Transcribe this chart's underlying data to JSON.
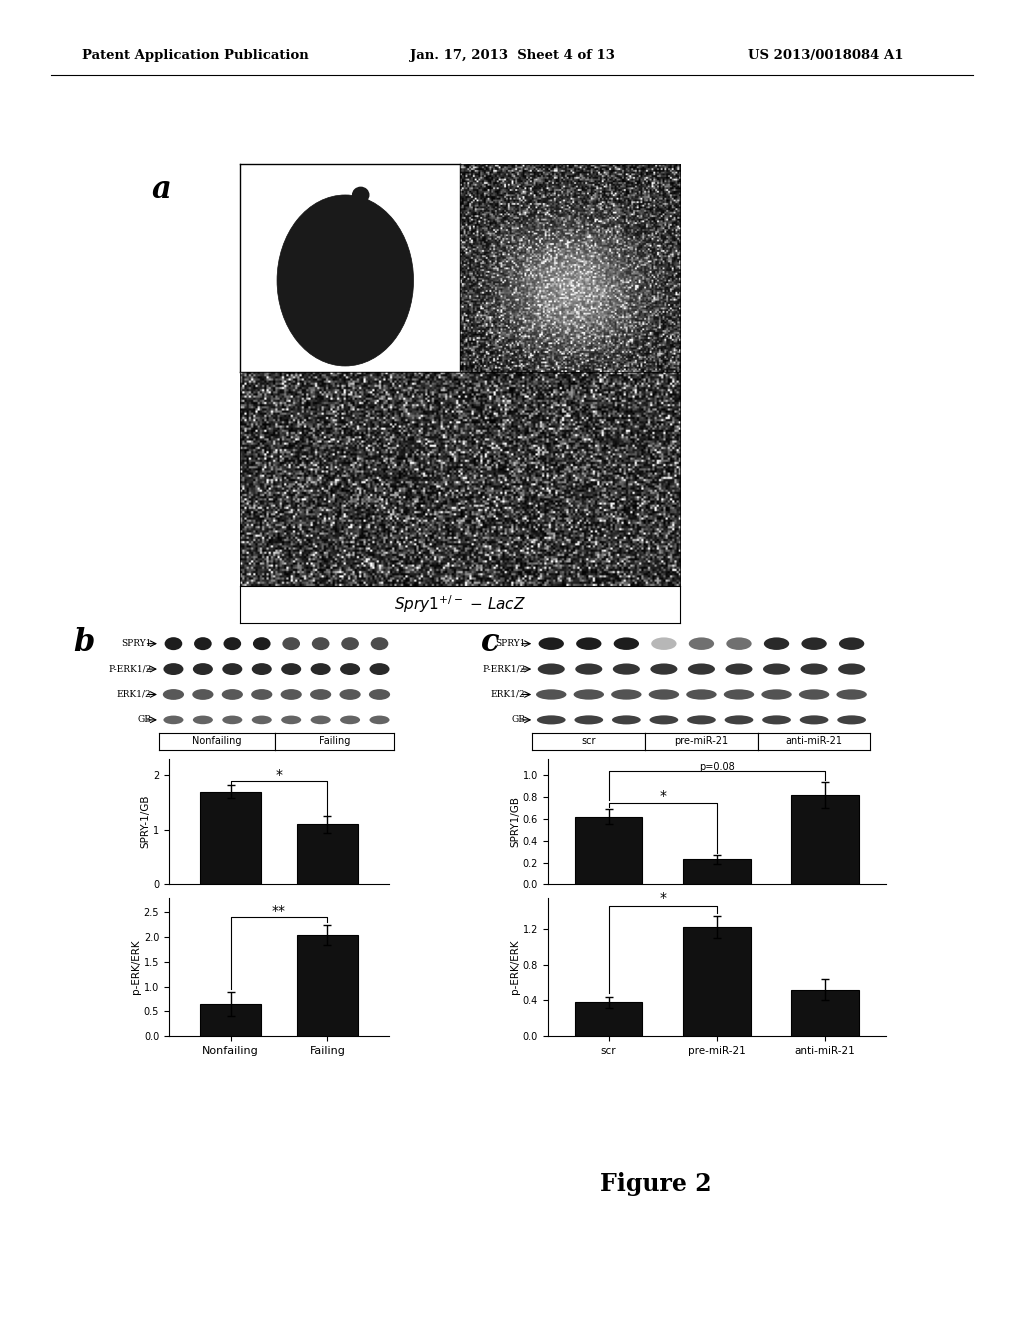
{
  "header_left": "Patent Application Publication",
  "header_mid": "Jan. 17, 2013  Sheet 4 of 13",
  "header_right": "US 2013/0018084 A1",
  "panel_a_label": "a",
  "panel_b_label": "b",
  "panel_c_label": "c",
  "figure_label": "Figure 2",
  "panel_b": {
    "western_rows": [
      "SPRY1",
      "P-ERK1/2",
      "ERK1/2",
      "GB"
    ],
    "group_labels": [
      "Nonfailing",
      "Failing"
    ],
    "spry_ylabel": "SPRY-1/GB",
    "spry_yticks": [
      0,
      1,
      2
    ],
    "spry_ylim": [
      0,
      2.3
    ],
    "spry_bars": [
      1.7,
      1.1
    ],
    "spry_errors": [
      0.12,
      0.15
    ],
    "perk_ylabel": "p-ERK/ERK",
    "perk_yticks": [
      0.0,
      0.5,
      1.0,
      1.5,
      2.0,
      2.5
    ],
    "perk_ylim": [
      0,
      2.8
    ],
    "perk_bars": [
      0.65,
      2.05
    ],
    "perk_errors": [
      0.25,
      0.2
    ],
    "sig_spry": "*",
    "sig_perk": "**",
    "xticklabels": [
      "Nonfailing",
      "Failing"
    ],
    "bar_color": "#111111"
  },
  "panel_c": {
    "western_rows": [
      "SPRY1",
      "P-ERK1/2",
      "ERK1/2",
      "GB"
    ],
    "group_labels": [
      "scr",
      "pre-miR-21",
      "anti-miR-21"
    ],
    "spry_ylabel": "SPRY1/GB",
    "spry_yticks": [
      0,
      0.2,
      0.4,
      0.6,
      0.8,
      1.0
    ],
    "spry_ylim": [
      0,
      1.15
    ],
    "spry_bars": [
      0.62,
      0.23,
      0.82
    ],
    "spry_errors": [
      0.07,
      0.04,
      0.12
    ],
    "perk_ylabel": "p-ERK/ERK",
    "perk_yticks": [
      0,
      0.4,
      0.8,
      1.2
    ],
    "perk_ylim": [
      0,
      1.55
    ],
    "perk_bars": [
      0.38,
      1.22,
      0.52
    ],
    "perk_errors": [
      0.06,
      0.12,
      0.12
    ],
    "sig_spry": "*",
    "sig_perk": "*",
    "p_label": "p=0.08",
    "xticklabels": [
      "scr",
      "pre-miR-21",
      "anti-miR-21"
    ],
    "bar_color": "#111111"
  }
}
